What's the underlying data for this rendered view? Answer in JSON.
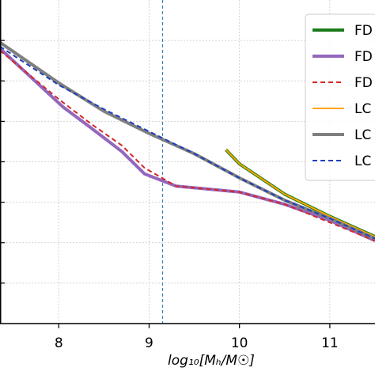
{
  "chart_data": {
    "type": "line",
    "title": "",
    "xlabel": "log₁₀[Mₕ/M☉]",
    "ylabel": "",
    "xlim": [
      7.35,
      11.5
    ],
    "ylim": [
      0,
      8
    ],
    "xticks": [
      8,
      9,
      10,
      11
    ],
    "xtick_labels": [
      "8",
      "9",
      "10",
      "11"
    ],
    "yticks": [
      1,
      2,
      3,
      4,
      5,
      6,
      7
    ],
    "grid": true,
    "legend_position": "top-right",
    "vline": {
      "x": 9.15,
      "color": "#1f77b4",
      "style": "dashed"
    },
    "series": [
      {
        "name": "FD",
        "color": "#1a7a1a",
        "style": "solid",
        "width": 4,
        "x": [
          9.85,
          10.0,
          10.5,
          11.0,
          11.5
        ],
        "y": [
          4.3,
          3.95,
          3.2,
          2.65,
          2.15
        ]
      },
      {
        "name": "FD",
        "color": "#9467bd",
        "style": "solid",
        "width": 4,
        "x": [
          7.35,
          8.05,
          8.35,
          8.7,
          8.95,
          9.3,
          10.0,
          10.5,
          11.0,
          11.5
        ],
        "y": [
          6.8,
          5.35,
          4.85,
          4.25,
          3.7,
          3.4,
          3.25,
          2.95,
          2.55,
          2.05
        ]
      },
      {
        "name": "FD",
        "color": "#d62728",
        "style": "dashed",
        "width": 2,
        "x": [
          7.35,
          8.0,
          8.35,
          8.7,
          8.95,
          9.3,
          10.0,
          10.5,
          11.0,
          11.5
        ],
        "y": [
          6.75,
          5.55,
          4.95,
          4.4,
          3.85,
          3.4,
          3.25,
          2.95,
          2.5,
          2.05
        ]
      },
      {
        "name": "LC",
        "color": "#ffa500",
        "style": "solid",
        "width": 2,
        "x": [
          9.85,
          10.0,
          10.5,
          11.0,
          11.5
        ],
        "y": [
          4.3,
          3.95,
          3.2,
          2.65,
          2.15
        ]
      },
      {
        "name": "LC",
        "color": "#7f7f7f",
        "style": "solid",
        "width": 4,
        "x": [
          7.35,
          8.0,
          8.5,
          9.0,
          9.5,
          10.0,
          10.5,
          11.0,
          11.5
        ],
        "y": [
          6.95,
          5.95,
          5.25,
          4.7,
          4.2,
          3.6,
          3.05,
          2.6,
          2.1
        ]
      },
      {
        "name": "LC",
        "color": "#1f3fbf",
        "style": "dashed",
        "width": 2,
        "x": [
          7.35,
          8.0,
          8.5,
          9.0,
          9.5,
          10.0,
          10.5,
          11.0,
          11.5
        ],
        "y": [
          6.85,
          5.9,
          5.3,
          4.75,
          4.2,
          3.6,
          3.05,
          2.6,
          2.1
        ]
      }
    ]
  }
}
